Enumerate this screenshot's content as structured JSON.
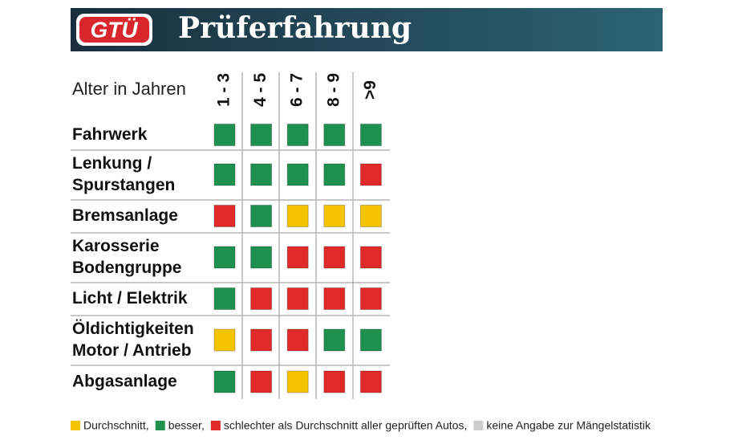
{
  "header": {
    "logo": "GTÜ",
    "title": "Prüferfahrung"
  },
  "table": {
    "corner_label": "Alter in Jahren",
    "columns": [
      "1 - 3",
      "4 - 5",
      "6 - 7",
      "8 - 9",
      ">9"
    ],
    "rows": [
      {
        "label": [
          "Fahrwerk"
        ],
        "ratings": [
          "green",
          "green",
          "green",
          "green",
          "green"
        ]
      },
      {
        "label": [
          "Lenkung /",
          "Spurstangen"
        ],
        "ratings": [
          "green",
          "green",
          "green",
          "green",
          "red"
        ]
      },
      {
        "label": [
          "Bremsanlage"
        ],
        "ratings": [
          "red",
          "green",
          "yellow",
          "yellow",
          "yellow"
        ]
      },
      {
        "label": [
          "Karosserie",
          "Bodengruppe"
        ],
        "ratings": [
          "green",
          "green",
          "red",
          "red",
          "red"
        ]
      },
      {
        "label": [
          "Licht / Elektrik"
        ],
        "ratings": [
          "green",
          "red",
          "red",
          "red",
          "red"
        ]
      },
      {
        "label": [
          "Öldichtigkeiten",
          "Motor / Antrieb"
        ],
        "ratings": [
          "yellow",
          "red",
          "red",
          "green",
          "green"
        ]
      },
      {
        "label": [
          "Abgasanlage"
        ],
        "ratings": [
          "green",
          "red",
          "yellow",
          "red",
          "red"
        ]
      }
    ]
  },
  "legend": [
    {
      "key": "yellow",
      "color": "#f5c400",
      "text": "Durchschnitt,"
    },
    {
      "key": "green",
      "color": "#1e9150",
      "text": "besser,"
    },
    {
      "key": "red",
      "color": "#e02a2a",
      "text": "schlechter als Durchschnitt aller geprüften Autos,"
    },
    {
      "key": "gray",
      "color": "#cccccc",
      "text": "keine Angabe zur Mängelstatistik"
    }
  ]
}
